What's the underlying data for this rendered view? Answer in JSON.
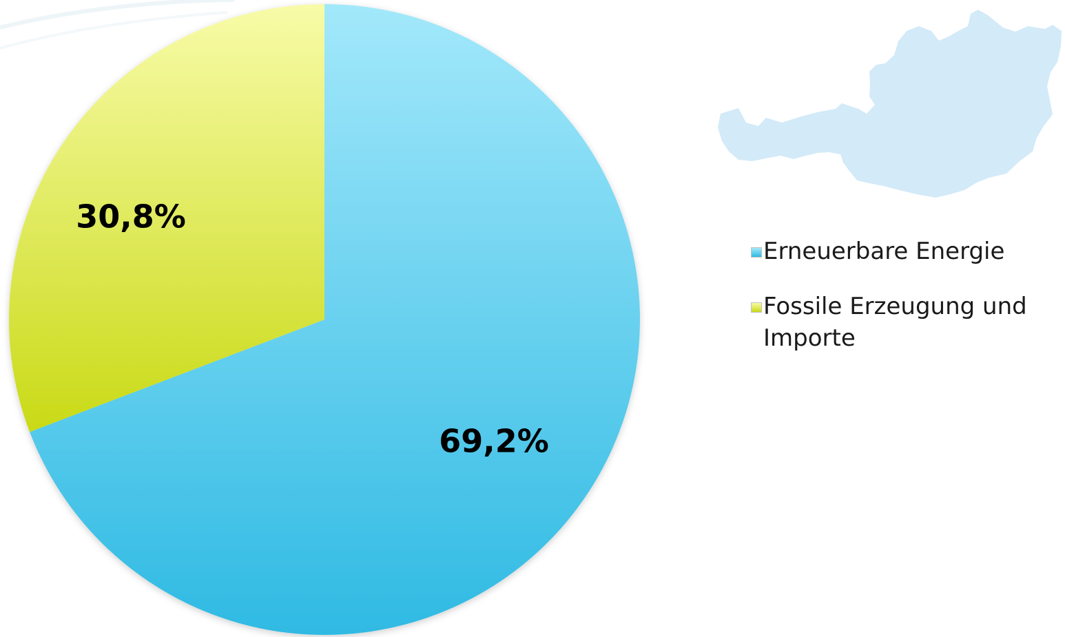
{
  "chart_data": {
    "type": "pie",
    "slices": [
      {
        "label": "Erneuerbare Energie",
        "value": 69.2,
        "display": "69,2%",
        "color_top": "#a3e8fb",
        "color_bottom": "#2fbae3"
      },
      {
        "label": "Fossile Erzeugung und Importe",
        "value": 30.8,
        "display": "30,8%",
        "color_top": "#f8fba8",
        "color_bottom": "#c9da16"
      }
    ],
    "start_angle": "12 o'clock",
    "direction": "clockwise",
    "legend_position": "right"
  },
  "legend": {
    "items": [
      {
        "label": "Erneuerbare Energie",
        "color": "#5ecdef"
      },
      {
        "label": "Fossile Erzeugung und Importe",
        "color": "#e2ec5a"
      }
    ]
  },
  "decor": {
    "map_icon": "austria-map-silhouette",
    "map_color": "#d3eaf8"
  }
}
